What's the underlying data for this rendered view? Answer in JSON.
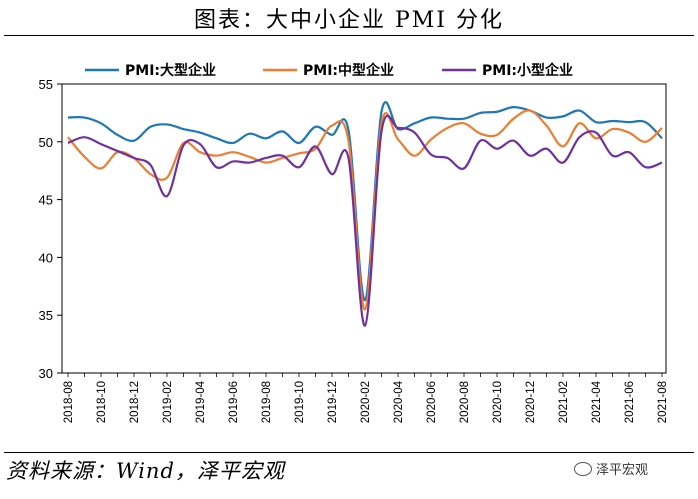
{
  "page": {
    "title": "图表：大中小企业 PMI 分化",
    "source": "资料来源：Wind，泽平宏观",
    "watermark": "泽平宏观",
    "watermark_icon": "wechat-icon"
  },
  "chart_data": {
    "type": "line",
    "title": "图表：大中小企业 PMI 分化",
    "xlabel": "",
    "ylabel": "",
    "ylim": [
      30,
      55
    ],
    "yticks": [
      30,
      35,
      40,
      45,
      50,
      55
    ],
    "grid": false,
    "legend_position": "top",
    "x": [
      "2018-08",
      "2018-09",
      "2018-10",
      "2018-11",
      "2018-12",
      "2019-01",
      "2019-02",
      "2019-03",
      "2019-04",
      "2019-05",
      "2019-06",
      "2019-07",
      "2019-08",
      "2019-09",
      "2019-10",
      "2019-11",
      "2019-12",
      "2020-01",
      "2020-02",
      "2020-03",
      "2020-04",
      "2020-05",
      "2020-06",
      "2020-07",
      "2020-08",
      "2020-09",
      "2020-10",
      "2020-11",
      "2020-12",
      "2021-01",
      "2021-02",
      "2021-03",
      "2021-04",
      "2021-05",
      "2021-06",
      "2021-07",
      "2021-08"
    ],
    "xtick_labels": [
      "2018-08",
      "2018-10",
      "2018-12",
      "2019-02",
      "2019-04",
      "2019-06",
      "2019-08",
      "2019-10",
      "2019-12",
      "2020-02",
      "2020-04",
      "2020-06",
      "2020-08",
      "2020-10",
      "2020-12",
      "2021-02",
      "2021-04",
      "2021-06",
      "2021-08"
    ],
    "series": [
      {
        "name": "PMI:大型企业",
        "color": "#1f77b4",
        "values": [
          52.1,
          52.1,
          51.6,
          50.6,
          50.1,
          51.3,
          51.5,
          51.1,
          50.8,
          50.3,
          49.9,
          50.7,
          50.3,
          50.9,
          49.9,
          51.3,
          50.6,
          51.0,
          36.3,
          52.6,
          51.1,
          51.6,
          52.1,
          52.0,
          52.0,
          52.5,
          52.6,
          53.0,
          52.7,
          52.1,
          52.2,
          52.7,
          51.7,
          51.8,
          51.7,
          51.7,
          50.3
        ]
      },
      {
        "name": "PMI:中型企业",
        "color": "#ed7d31",
        "values": [
          50.4,
          48.7,
          47.7,
          49.1,
          48.6,
          47.2,
          46.9,
          49.9,
          49.1,
          48.8,
          49.1,
          48.7,
          48.2,
          48.6,
          49.0,
          49.4,
          51.4,
          50.1,
          35.5,
          51.6,
          50.2,
          48.8,
          50.2,
          51.2,
          51.6,
          50.7,
          50.6,
          52.0,
          52.7,
          51.4,
          49.6,
          51.6,
          50.3,
          51.1,
          50.8,
          50.0,
          51.2
        ]
      },
      {
        "name": "PMI:小型企业",
        "color": "#7030a0",
        "values": [
          49.9,
          50.4,
          49.8,
          49.2,
          48.6,
          48.0,
          45.3,
          49.7,
          49.8,
          47.8,
          48.3,
          48.2,
          48.6,
          48.8,
          47.8,
          49.6,
          47.2,
          48.6,
          34.1,
          50.9,
          51.2,
          50.8,
          48.9,
          48.6,
          47.7,
          50.1,
          49.4,
          50.1,
          48.8,
          49.4,
          48.2,
          50.4,
          50.8,
          48.8,
          49.1,
          47.8,
          48.2
        ]
      }
    ]
  }
}
